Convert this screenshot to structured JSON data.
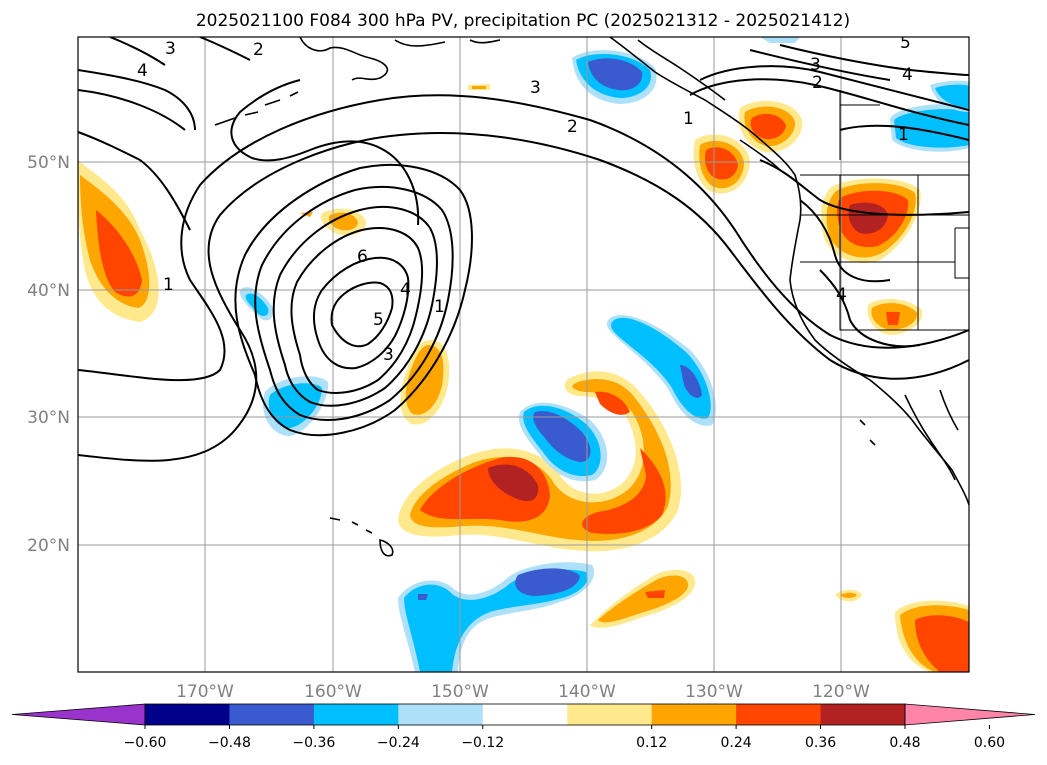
{
  "title": "2025021100 F084 300 hPa PV, precipitation PC (2025021312 - 2025021412)",
  "map": {
    "longitude_labels": [
      "170°W",
      "160°W",
      "150°W",
      "140°W",
      "130°W",
      "120°W"
    ],
    "latitude_labels": [
      "50°N",
      "40°N",
      "30°N",
      "20°N"
    ],
    "contour_labels": [
      "3",
      "2",
      "4",
      "3",
      "2",
      "5",
      "3",
      "2",
      "4",
      "1",
      "1",
      "6",
      "4",
      "5",
      "3",
      "1",
      "4",
      "1"
    ],
    "gridlines": true,
    "land_color": "#ffffff",
    "coastline_color": "#000000"
  },
  "colorbar": {
    "ticks": [
      "−0.60",
      "−0.48",
      "−0.36",
      "−0.24",
      "−0.12",
      "0.12",
      "0.24",
      "0.36",
      "0.48",
      "0.60"
    ],
    "colors": [
      "#9933cc",
      "#00008b",
      "#3a5bd0",
      "#00bfff",
      "#aee1f9",
      "#ffffff",
      "#ffe98c",
      "#ffa500",
      "#ff4500",
      "#b22222",
      "#ff85a8"
    ],
    "extend": "both"
  },
  "fill_colors": {
    "neg_light": "#aee1f9",
    "neg_mid": "#00bfff",
    "neg_dark": "#3a5bd0",
    "pos_light": "#ffe98c",
    "pos_mid": "#ffa500",
    "pos_strong": "#ff4500",
    "pos_dark": "#b22222"
  }
}
